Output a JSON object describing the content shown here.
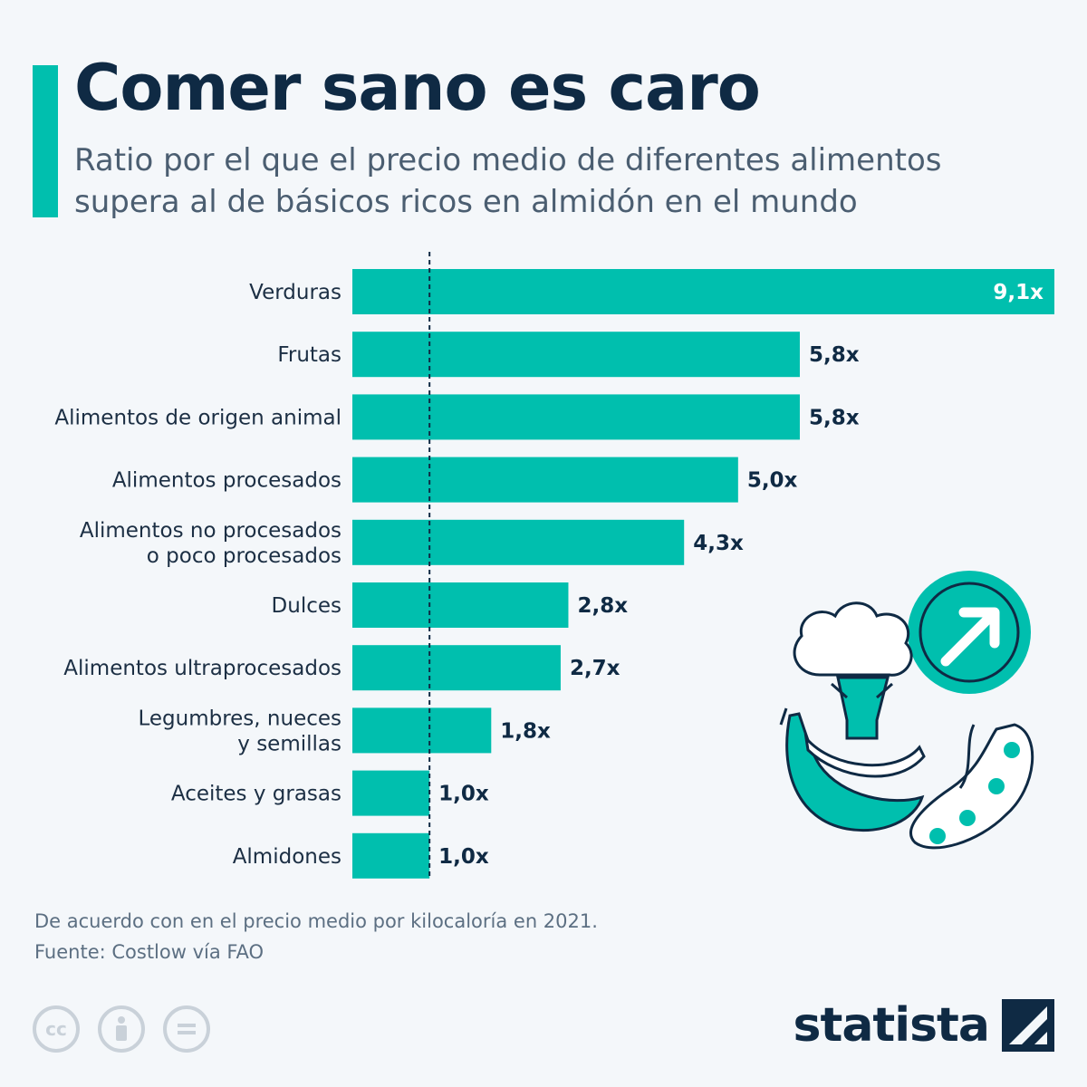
{
  "header": {
    "title": "Comer sano es caro",
    "subtitle_line1": "Ratio por el que el precio medio de diferentes alimentos",
    "subtitle_line2": "supera al de básicos ricos en almidón en el mundo"
  },
  "colors": {
    "accent": "#00bfae",
    "text_dark": "#0f2a44",
    "background": "#f4f7fa"
  },
  "chart_data": {
    "type": "bar",
    "orientation": "horizontal",
    "categories": [
      [
        "Verduras"
      ],
      [
        "Frutas"
      ],
      [
        "Alimentos de origen animal"
      ],
      [
        "Alimentos procesados"
      ],
      [
        "Alimentos no procesados",
        "o poco procesados"
      ],
      [
        "Dulces"
      ],
      [
        "Alimentos ultraprocesados"
      ],
      [
        "Legumbres, nueces",
        "y semillas"
      ],
      [
        "Aceites y grasas"
      ],
      [
        "Almidones"
      ]
    ],
    "values": [
      9.1,
      5.8,
      5.8,
      5.0,
      4.3,
      2.8,
      2.7,
      1.8,
      1.0,
      1.0
    ],
    "value_labels": [
      "9,1x",
      "5,8x",
      "5,8x",
      "5,0x",
      "4,3x",
      "2,8x",
      "2,7x",
      "1,8x",
      "1,0x",
      "1,0x"
    ],
    "xlim": [
      0,
      9.1
    ],
    "reference_line": 1.0,
    "grid": false
  },
  "footer": {
    "note": "De acuerdo con en el precio medio por kilocaloría en 2021.",
    "source": "Fuente: Costlow vía FAO",
    "brand": "statista",
    "license_icons": [
      "cc-icon",
      "attribution-icon",
      "no-derivatives-icon"
    ]
  }
}
